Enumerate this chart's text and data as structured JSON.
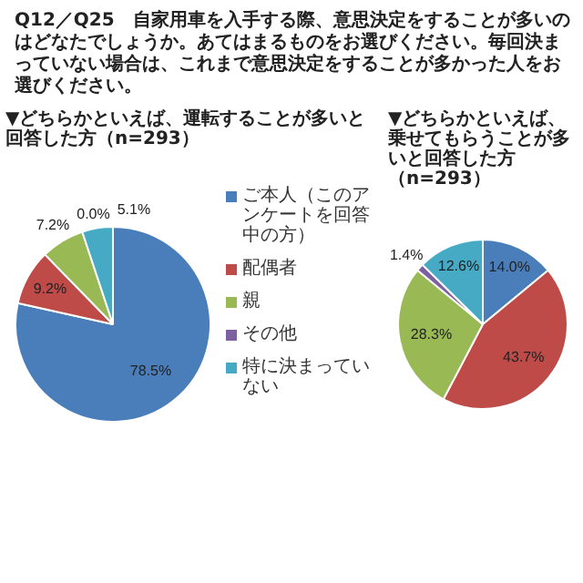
{
  "chart_data": [
    {
      "type": "pie",
      "title": "Q12／Q25　自家用車を入手する際、意思決定をすることが多いのはどなたでしょうか。あてはまるものをお選びください。毎回決まっていない場合は、これまで意思決定をすることが多かった人をお選びください。",
      "subtitle": "▼どちらかといえば、運転することが多いと回答した方（n=293）",
      "categories": [
        "ご本人（このアンケートを回答中の方）",
        "配偶者",
        "親",
        "その他",
        "特に決まっていない"
      ],
      "values": [
        78.5,
        9.2,
        7.2,
        0.0,
        5.1
      ],
      "value_labels": [
        "78.5%",
        "9.2%",
        "7.2%",
        "0.0%",
        "5.1%"
      ],
      "colors": [
        "#4a7ebb",
        "#be4b48",
        "#98b954",
        "#7d60a0",
        "#46aac5"
      ],
      "legend": "right"
    },
    {
      "type": "pie",
      "subtitle": "▼どちらかといえば、乗せてもらうことが多いと回答した方（n=293）",
      "values": [
        14.0,
        43.7,
        28.3,
        1.4,
        12.6
      ],
      "value_labels": [
        "14.0%",
        "43.7%",
        "28.3%",
        "1.4%",
        "12.6%"
      ],
      "colors": [
        "#4a7ebb",
        "#be4b48",
        "#98b954",
        "#7d60a0",
        "#46aac5"
      ]
    }
  ]
}
